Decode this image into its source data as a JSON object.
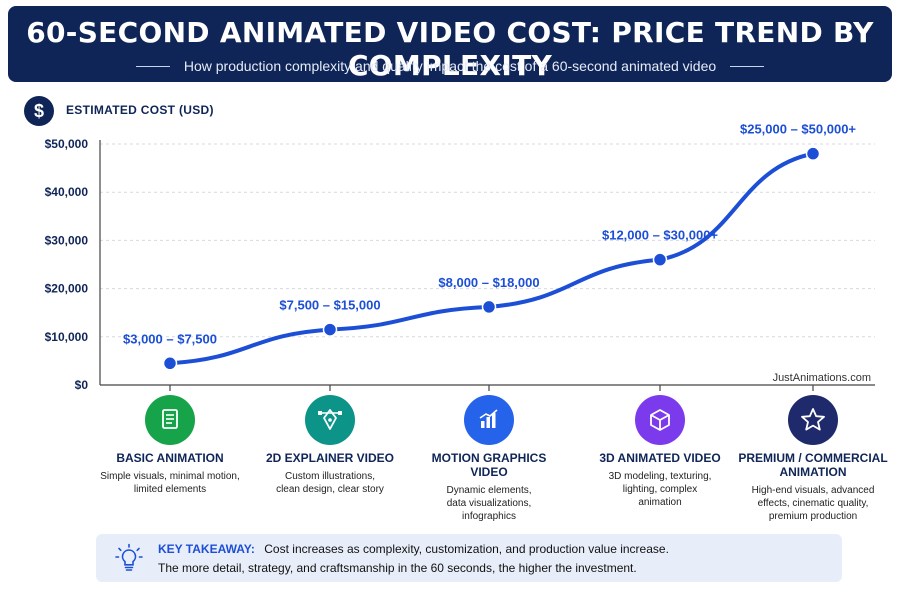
{
  "header": {
    "title": "60-SECOND ANIMATED VIDEO COST: PRICE TREND BY COMPLEXITY",
    "subtitle": "How production complexity and quality impact the cost of a 60-second animated video"
  },
  "cost_badge": "$",
  "chart_data": {
    "type": "line",
    "ylabel": "ESTIMATED COST (USD)",
    "ylim": [
      0,
      50000
    ],
    "y_ticks": [
      "$0",
      "$10,000",
      "$20,000",
      "$30,000",
      "$40,000",
      "$50,000"
    ],
    "y_tick_values": [
      0,
      10000,
      20000,
      30000,
      40000,
      50000
    ],
    "grid": "horizontal dashed",
    "line_color": "#1d4fd6",
    "categories": [
      "BASIC ANIMATION",
      "2D EXPLAINER VIDEO",
      "MOTION GRAPHICS VIDEO",
      "3D ANIMATED VIDEO",
      "PREMIUM / COMMERCIAL ANIMATION"
    ],
    "values": [
      4500,
      11500,
      16200,
      26000,
      48000
    ],
    "data_labels": [
      "$3,000 – $7,500",
      "$7,500 – $15,000",
      "$8,000 – $18,000",
      "$12,000 – $30,000+",
      "$25,000 – $50,000+"
    ]
  },
  "watermark": "JustAnimations.com",
  "categories": [
    {
      "name": "BASIC ANIMATION",
      "desc": [
        "Simple visuals, minimal motion,",
        "limited elements"
      ],
      "color": "#16a34a",
      "icon": "document-icon"
    },
    {
      "name": "2D EXPLAINER VIDEO",
      "desc": [
        "Custom illustrations,",
        "clean design, clear story"
      ],
      "color": "#0d9488",
      "icon": "pen-tool-icon"
    },
    {
      "name": "MOTION GRAPHICS VIDEO",
      "desc": [
        "Dynamic elements,",
        "data visualizations,",
        "infographics"
      ],
      "color": "#2563eb",
      "icon": "bar-chart-icon"
    },
    {
      "name": "3D ANIMATED VIDEO",
      "desc": [
        "3D modeling, texturing,",
        "lighting, complex",
        "animation"
      ],
      "color": "#7c3aed",
      "icon": "cube-icon"
    },
    {
      "name": "PREMIUM / COMMERCIAL ANIMATION",
      "name_lines": [
        "PREMIUM / COMMERCIAL",
        "ANIMATION"
      ],
      "desc": [
        "High-end visuals, advanced",
        "effects, cinematic quality,",
        "premium production"
      ],
      "color": "#1e2a6b",
      "icon": "star-icon"
    }
  ],
  "takeaway": {
    "label": "KEY TAKEAWAY:",
    "line1": "Cost increases as complexity, customization, and production value increase.",
    "line2": "The more detail, strategy, and craftsmanship in the 60 seconds, the higher the investment."
  }
}
